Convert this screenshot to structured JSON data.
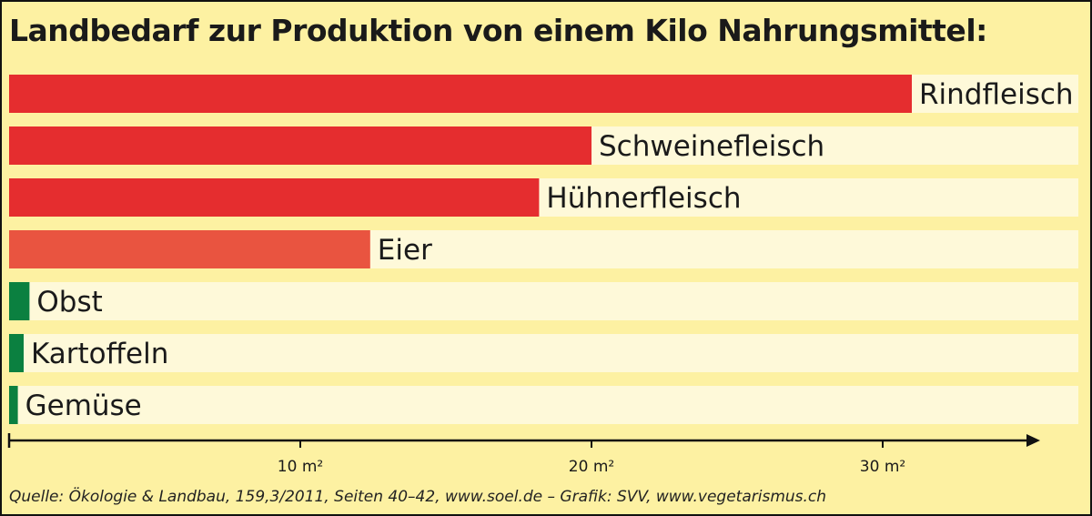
{
  "chart_data": {
    "type": "bar",
    "orientation": "horizontal",
    "title": "Landbedarf zur Produktion von einem Kilo Nahrungsmittel:",
    "categories": [
      "Rindfleisch",
      "Schweinefleisch",
      "Hühnerfleisch",
      "Eier",
      "Obst",
      "Kartoffeln",
      "Gemüse"
    ],
    "values": [
      31,
      20,
      18.2,
      12.4,
      0.7,
      0.5,
      0.3
    ],
    "colors": [
      "#e52d2f",
      "#e52d2f",
      "#e52d2f",
      "#e95440",
      "#0b8040",
      "#0b8040",
      "#0b8040"
    ],
    "xlabel": "",
    "unit": "m²",
    "xlim": [
      0,
      35
    ],
    "xticks": [
      10,
      20,
      30
    ],
    "xtick_labels": [
      "10 m²",
      "20 m²",
      "30 m²"
    ],
    "grid": false,
    "legend": "none"
  },
  "source": "Quelle: Ökologie & Landbau, 159,3/2011, Seiten 40–42, www.soel.de  –  Grafik: SVV, www.vegetarismus.ch",
  "colors": {
    "background": "#fdf1a2",
    "track": "#fef9d9",
    "axis": "#111111"
  }
}
